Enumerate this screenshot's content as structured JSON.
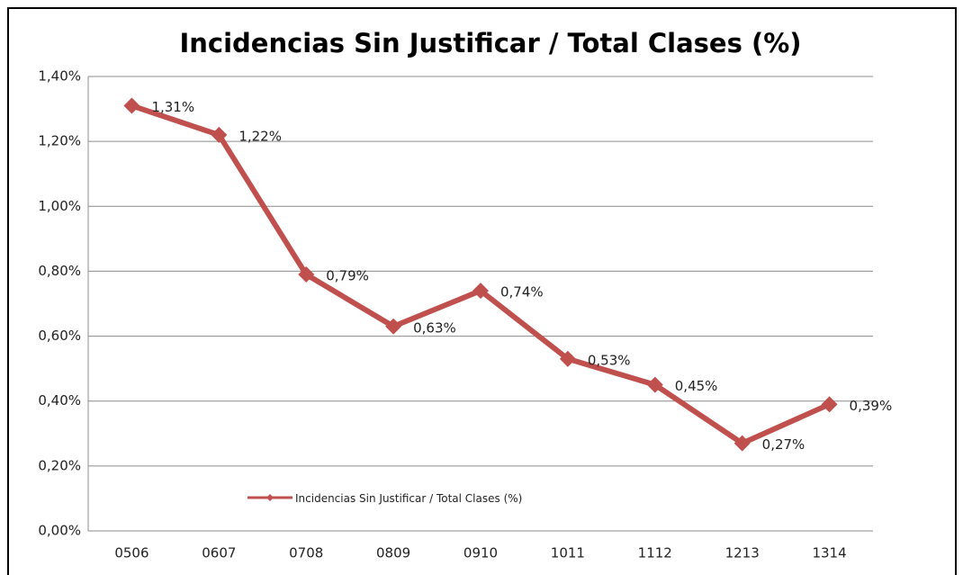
{
  "chart_data": {
    "type": "line",
    "title": "Incidencias Sin Justificar / Total Clases (%)",
    "categories": [
      "0506",
      "0607",
      "0708",
      "0809",
      "0910",
      "1011",
      "1112",
      "1213",
      "1314"
    ],
    "series": [
      {
        "name": "Incidencias Sin Justificar / Total Clases (%)",
        "color": "#c0504d",
        "values": [
          1.31,
          1.22,
          0.79,
          0.63,
          0.74,
          0.53,
          0.45,
          0.27,
          0.39
        ],
        "value_labels": [
          "1,31%",
          "1,22%",
          "0,79%",
          "0,63%",
          "0,74%",
          "0,53%",
          "0,45%",
          "0,27%",
          "0,39%"
        ]
      }
    ],
    "ylim": [
      0,
      1.4
    ],
    "yticks": [
      {
        "value": 0,
        "label": "0,00%"
      },
      {
        "value": 0.2,
        "label": "0,20%"
      },
      {
        "value": 0.4,
        "label": "0,40%"
      },
      {
        "value": 0.6,
        "label": "0,60%"
      },
      {
        "value": 0.8,
        "label": "0,80%"
      },
      {
        "value": 1.0,
        "label": "1,00%"
      },
      {
        "value": 1.2,
        "label": "1,20%"
      },
      {
        "value": 1.4,
        "label": "1,40%"
      }
    ],
    "grid": true,
    "legend": "bottom-left"
  }
}
